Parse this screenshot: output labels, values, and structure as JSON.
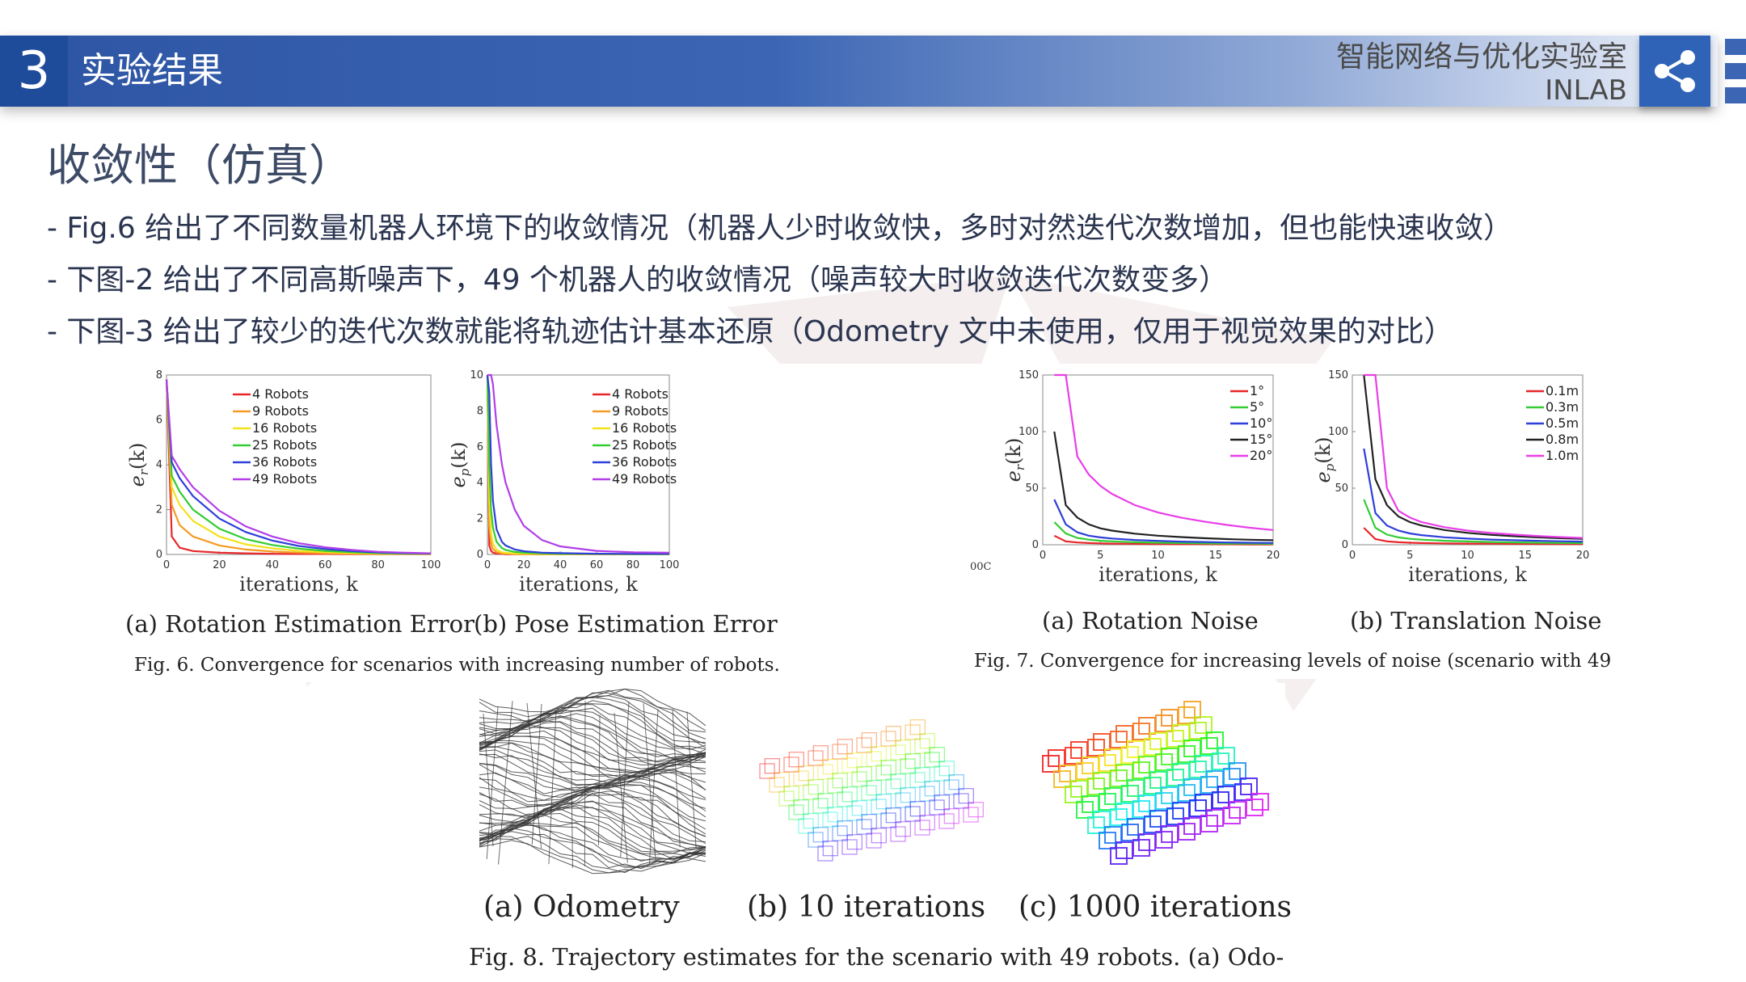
{
  "header": {
    "section_number": "3",
    "section_title": "实验结果",
    "lab_name_cn": "智能网络与优化实验室",
    "lab_name_en": "INLAB",
    "brand_color": "#2d55a3"
  },
  "content": {
    "heading": "收敛性（仿真）",
    "bullets": [
      "- Fig.6 给出了不同数量机器人环境下的收敛情况（机器人少时收敛快，多时对然迭代次数增加，但也能快速收敛）",
      "- 下图-2 给出了不同高斯噪声下，49 个机器人的收敛情况（噪声较大时收敛迭代次数变多）",
      "- 下图-3 给出了较少的迭代次数就能将轨迹估计基本还原（Odometry 文中未使用，仅用于视觉效果的对比）"
    ]
  },
  "figures": {
    "fig6": {
      "caption": "Fig. 6.   Convergence for scenarios with increasing number of robots.",
      "sub_a_caption": "(a) Rotation Estimation Error",
      "sub_b_caption": "(b) Pose Estimation Error",
      "xlabel": "iterations, k",
      "ylabel_a": "e_r(k)",
      "ylabel_b": "e_p(k)"
    },
    "fig7": {
      "caption": "Fig. 7.    Convergence for increasing levels of noise (scenario with 49",
      "sub_a_caption": "(a) Rotation Noise",
      "sub_b_caption": "(b) Translation Noise",
      "xlabel": "iterations, k",
      "ylabel_a": "e_r(k)",
      "ylabel_b": "e_p(k)",
      "clipped_tick": "00C"
    },
    "fig8": {
      "caption": "Fig. 8.    Trajectory estimates for the scenario with 49 robots. (a) Odo-",
      "sub_a_caption": "(a) Odometry",
      "sub_b_caption": "(b) 10 iterations",
      "sub_c_caption": "(c) 1000 iterations"
    }
  },
  "chart_data": [
    {
      "type": "line",
      "panel": "fig6a",
      "xlabel": "iterations, k",
      "ylabel": "e_r(k)",
      "xlim": [
        0,
        100
      ],
      "ylim": [
        0,
        8
      ],
      "xticks": [
        0,
        20,
        40,
        60,
        80,
        100
      ],
      "yticks": [
        0,
        2,
        4,
        6,
        8
      ],
      "legend_position": "top-right",
      "x": [
        0,
        2,
        5,
        10,
        20,
        30,
        40,
        50,
        60,
        70,
        80,
        90,
        100
      ],
      "series": [
        {
          "name": "4 Robots",
          "color": "#e8262a",
          "values": [
            7.8,
            0.8,
            0.3,
            0.15,
            0.08,
            0.05,
            0.03,
            0.02,
            0.02,
            0.01,
            0.01,
            0.01,
            0.01
          ]
        },
        {
          "name": "9 Robots",
          "color": "#f59a23",
          "values": [
            7.8,
            2.2,
            1.3,
            0.8,
            0.4,
            0.22,
            0.13,
            0.08,
            0.05,
            0.03,
            0.02,
            0.02,
            0.01
          ]
        },
        {
          "name": "16 Robots",
          "color": "#f2e21c",
          "values": [
            7.8,
            3.0,
            2.2,
            1.5,
            0.8,
            0.45,
            0.27,
            0.16,
            0.1,
            0.06,
            0.04,
            0.03,
            0.02
          ]
        },
        {
          "name": "25 Robots",
          "color": "#33cc33",
          "values": [
            7.8,
            3.5,
            2.8,
            2.0,
            1.15,
            0.68,
            0.42,
            0.26,
            0.16,
            0.1,
            0.06,
            0.04,
            0.03
          ]
        },
        {
          "name": "36 Robots",
          "color": "#2f3fd9",
          "values": [
            7.8,
            4.1,
            3.4,
            2.6,
            1.6,
            1.0,
            0.62,
            0.38,
            0.24,
            0.15,
            0.09,
            0.06,
            0.04
          ]
        },
        {
          "name": "49 Robots",
          "color": "#b23ee8",
          "values": [
            7.8,
            4.4,
            3.8,
            3.0,
            1.95,
            1.25,
            0.8,
            0.5,
            0.32,
            0.2,
            0.12,
            0.08,
            0.05
          ]
        }
      ]
    },
    {
      "type": "line",
      "panel": "fig6b",
      "xlabel": "iterations, k",
      "ylabel": "e_p(k)",
      "xlim": [
        0,
        100
      ],
      "ylim": [
        0,
        10
      ],
      "xticks": [
        0,
        20,
        40,
        60,
        80,
        100
      ],
      "yticks": [
        0,
        2,
        4,
        6,
        8,
        10
      ],
      "legend_position": "top-right",
      "x": [
        0,
        1,
        2,
        3,
        5,
        8,
        10,
        15,
        20,
        30,
        40,
        60,
        80,
        100
      ],
      "series": [
        {
          "name": "4 Robots",
          "color": "#e8262a",
          "values": [
            10,
            0.5,
            0.2,
            0.1,
            0.05,
            0.03,
            0.02,
            0.02,
            0.01,
            0.01,
            0.01,
            0.01,
            0.01,
            0.01
          ]
        },
        {
          "name": "9 Robots",
          "color": "#f59a23",
          "values": [
            10,
            1.6,
            0.6,
            0.3,
            0.12,
            0.06,
            0.05,
            0.03,
            0.02,
            0.02,
            0.01,
            0.01,
            0.01,
            0.01
          ]
        },
        {
          "name": "16 Robots",
          "color": "#f2e21c",
          "values": [
            10,
            3.0,
            1.2,
            0.6,
            0.25,
            0.12,
            0.09,
            0.05,
            0.04,
            0.03,
            0.02,
            0.02,
            0.01,
            0.01
          ]
        },
        {
          "name": "25 Robots",
          "color": "#33cc33",
          "values": [
            10,
            5.0,
            2.5,
            1.5,
            0.7,
            0.35,
            0.25,
            0.14,
            0.1,
            0.06,
            0.04,
            0.03,
            0.02,
            0.02
          ]
        },
        {
          "name": "36 Robots",
          "color": "#2f3fd9",
          "values": [
            10,
            9.0,
            5.0,
            3.0,
            1.4,
            0.7,
            0.5,
            0.28,
            0.18,
            0.1,
            0.07,
            0.04,
            0.03,
            0.03
          ]
        },
        {
          "name": "49 Robots",
          "color": "#b23ee8",
          "values": [
            10,
            10,
            10,
            9.5,
            7.2,
            5.0,
            4.0,
            2.5,
            1.6,
            0.8,
            0.45,
            0.2,
            0.12,
            0.1
          ]
        }
      ]
    },
    {
      "type": "line",
      "panel": "fig7a",
      "xlabel": "iterations, k",
      "ylabel": "e_r(k)",
      "xlim": [
        0,
        20
      ],
      "ylim": [
        0,
        150
      ],
      "xticks": [
        0,
        5,
        10,
        15,
        20
      ],
      "yticks": [
        0,
        50,
        100,
        150
      ],
      "legend_position": "top-right",
      "x": [
        1,
        2,
        3,
        4,
        5,
        6,
        8,
        10,
        12,
        14,
        16,
        18,
        20
      ],
      "series": [
        {
          "name": "1°",
          "color": "#e8262a",
          "values": [
            8,
            3,
            2,
            1.5,
            1.2,
            1.0,
            0.8,
            0.6,
            0.5,
            0.4,
            0.35,
            0.3,
            0.3
          ]
        },
        {
          "name": "5°",
          "color": "#33cc33",
          "values": [
            20,
            10,
            6,
            4.5,
            3.5,
            3.0,
            2.2,
            1.8,
            1.5,
            1.2,
            1.0,
            0.9,
            0.8
          ]
        },
        {
          "name": "10°",
          "color": "#2f3fd9",
          "values": [
            40,
            18,
            11,
            8,
            6.5,
            5.5,
            4.2,
            3.4,
            2.8,
            2.4,
            2.0,
            1.8,
            1.6
          ]
        },
        {
          "name": "15°",
          "color": "#222222",
          "values": [
            100,
            35,
            24,
            18,
            14.5,
            12.5,
            9.8,
            8.0,
            6.8,
            5.8,
            5.0,
            4.4,
            4.0
          ]
        },
        {
          "name": "20°",
          "color": "#e83ee8",
          "values": [
            150,
            150,
            78,
            62,
            52,
            45,
            35,
            28.5,
            24,
            20.5,
            17.5,
            15,
            13
          ]
        }
      ]
    },
    {
      "type": "line",
      "panel": "fig7b",
      "xlabel": "iterations, k",
      "ylabel": "e_p(k)",
      "xlim": [
        0,
        20
      ],
      "ylim": [
        0,
        150
      ],
      "xticks": [
        0,
        5,
        10,
        15,
        20
      ],
      "yticks": [
        0,
        50,
        100,
        150
      ],
      "legend_position": "top-right",
      "x": [
        1,
        2,
        3,
        4,
        5,
        6,
        8,
        10,
        12,
        14,
        16,
        18,
        20
      ],
      "series": [
        {
          "name": "0.1m",
          "color": "#e8262a",
          "values": [
            15,
            5,
            3,
            2.2,
            1.8,
            1.5,
            1.2,
            1.0,
            0.9,
            0.8,
            0.7,
            0.6,
            0.6
          ]
        },
        {
          "name": "0.3m",
          "color": "#33cc33",
          "values": [
            40,
            15,
            9,
            6.5,
            5.2,
            4.5,
            3.5,
            2.9,
            2.4,
            2.1,
            1.8,
            1.6,
            1.5
          ]
        },
        {
          "name": "0.5m",
          "color": "#2f3fd9",
          "values": [
            85,
            28,
            17,
            12.5,
            10,
            8.5,
            6.6,
            5.4,
            4.6,
            4.0,
            3.5,
            3.1,
            2.8
          ]
        },
        {
          "name": "0.8m",
          "color": "#222222",
          "values": [
            150,
            58,
            35,
            25,
            20,
            17,
            13,
            10.5,
            8.8,
            7.6,
            6.6,
            5.8,
            5.2
          ]
        },
        {
          "name": "1.0m",
          "color": "#e83ee8",
          "values": [
            150,
            150,
            50,
            30,
            24,
            20,
            15.5,
            12.5,
            10.5,
            9.0,
            7.8,
            6.8,
            6.0
          ]
        }
      ]
    }
  ]
}
